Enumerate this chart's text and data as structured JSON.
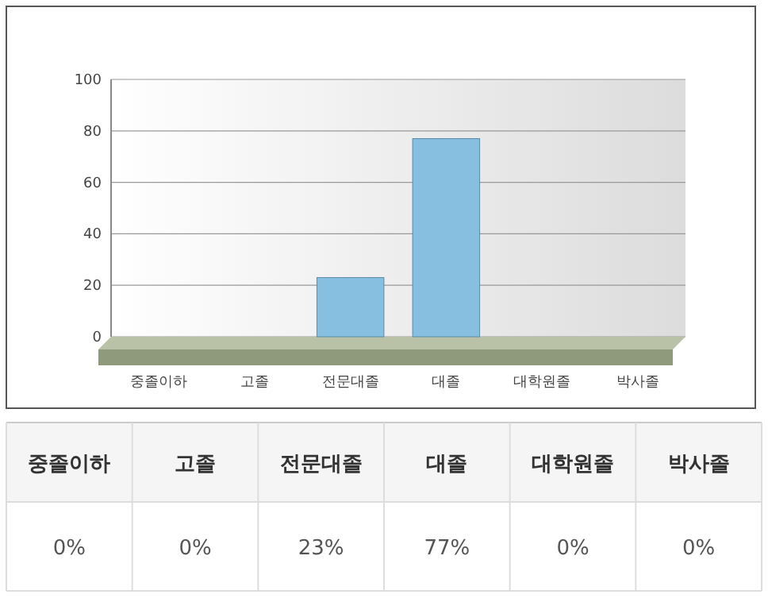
{
  "chart_data": {
    "type": "bar",
    "categories": [
      "중졸이하",
      "고졸",
      "전문대졸",
      "대졸",
      "대학원졸",
      "박사졸"
    ],
    "values": [
      0,
      0,
      23,
      77,
      0,
      0
    ],
    "value_labels": [
      "0%",
      "0%",
      "23%",
      "77%",
      "0%",
      "0%"
    ],
    "color": "#86bfdf",
    "ylim": [
      0,
      100
    ],
    "yticks": [
      0,
      20,
      40,
      60,
      80,
      100
    ],
    "grid": "y"
  }
}
